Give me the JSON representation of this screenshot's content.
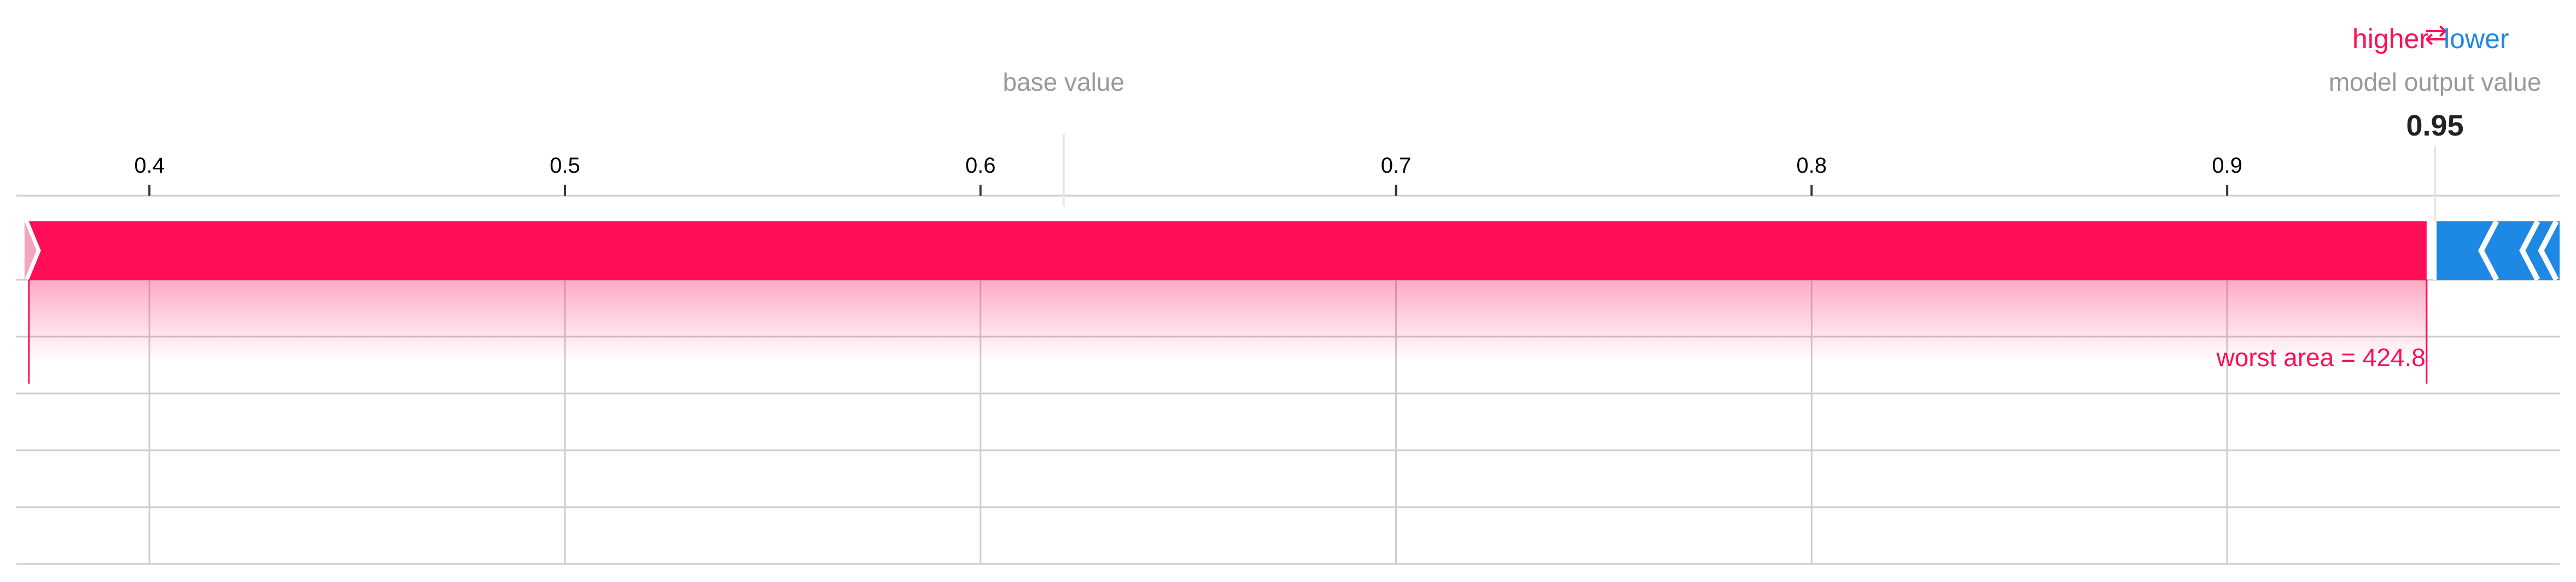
{
  "colors": {
    "positive": "#ff0d57",
    "negative": "#1e88e5",
    "grid": "#cccccc",
    "axis_text": "#000000",
    "muted_text": "#999999",
    "value_text": "#222222"
  },
  "legend": {
    "higher": "higher",
    "arrow": "⇄",
    "lower": "lower"
  },
  "labels": {
    "base_value": "base value",
    "model_output": "model output value",
    "output_value_text": "0.95"
  },
  "chart_data": {
    "type": "force_plot",
    "x_range": [
      0.368,
      0.98
    ],
    "ticks": [
      0.4,
      0.5,
      0.6,
      0.7,
      0.8,
      0.9
    ],
    "tick_labels": [
      "0.4",
      "0.5",
      "0.6",
      "0.7",
      "0.8",
      "0.9"
    ],
    "base_value": 0.62,
    "output_value": 0.95,
    "segments": [
      {
        "direction": "higher",
        "start": 0.371,
        "end": 0.948,
        "label": "worst area = 424.8"
      },
      {
        "direction": "lower",
        "start": 0.95,
        "end": 0.98,
        "label": ""
      }
    ],
    "grid": true
  }
}
